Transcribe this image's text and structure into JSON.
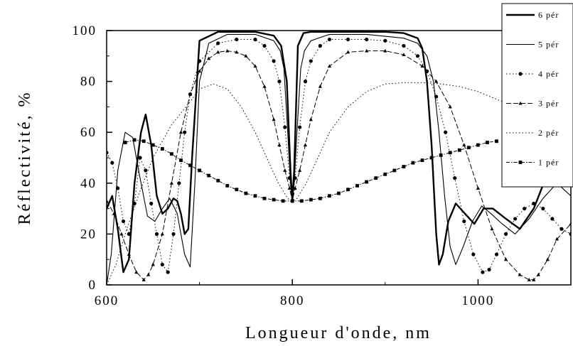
{
  "chart_data": {
    "type": "line",
    "title": "",
    "xlabel": "Longueur d'onde, nm",
    "ylabel": "Réflectivité, %",
    "xlim": [
      600,
      1100
    ],
    "ylim": [
      0,
      100
    ],
    "xticks": [
      600,
      800,
      1000
    ],
    "yticks": [
      0,
      20,
      40,
      60,
      80,
      100
    ],
    "grid": false,
    "legend_position": "top-right",
    "series": [
      {
        "name": "6 pér",
        "style": "thick-solid",
        "x": [
          600,
          606,
          612,
          618,
          624,
          630,
          637,
          642,
          648,
          654,
          660,
          666,
          672,
          676,
          680,
          684,
          688,
          692,
          700,
          720,
          740,
          760,
          780,
          788,
          794,
          798,
          800,
          802,
          806,
          812,
          820,
          840,
          860,
          880,
          900,
          920,
          935,
          940,
          945,
          950,
          955,
          958,
          962,
          968,
          976,
          986,
          996,
          1006,
          1016,
          1030,
          1045,
          1060,
          1075,
          1090,
          1100
        ],
        "y": [
          30,
          35,
          22,
          5,
          10,
          40,
          60,
          67,
          55,
          35,
          28,
          30,
          34,
          33,
          28,
          20,
          22,
          50,
          96,
          99.5,
          99.5,
          99.5,
          98,
          94,
          80,
          45,
          33,
          45,
          94,
          99,
          99.5,
          99.5,
          99.5,
          99.5,
          99.5,
          99,
          97,
          93,
          80,
          55,
          20,
          8,
          12,
          25,
          32,
          28,
          24,
          30,
          30,
          26,
          22,
          30,
          44,
          52,
          50
        ]
      },
      {
        "name": "5 pér",
        "style": "thin-solid",
        "x": [
          600,
          605,
          612,
          620,
          628,
          636,
          644,
          652,
          660,
          668,
          676,
          684,
          690,
          695,
          700,
          710,
          730,
          760,
          780,
          787,
          791,
          795,
          798,
          800,
          802,
          805,
          809,
          813,
          820,
          840,
          880,
          920,
          935,
          945,
          952,
          958,
          964,
          970,
          976,
          984,
          994,
          1004,
          1014,
          1026,
          1040,
          1055,
          1070,
          1085,
          1100
        ],
        "y": [
          0,
          12,
          45,
          60,
          58,
          42,
          27,
          25,
          30,
          34,
          28,
          12,
          7,
          40,
          80,
          95,
          98.5,
          98.5,
          96,
          92,
          85,
          60,
          40,
          33,
          40,
          60,
          85,
          92,
          96,
          98.5,
          98.5,
          97,
          95,
          90,
          80,
          60,
          35,
          15,
          8,
          15,
          25,
          31,
          28,
          24,
          20,
          26,
          34,
          40,
          35
        ]
      },
      {
        "name": "4 pér",
        "style": "dotted-circles",
        "x": [
          600,
          606,
          612,
          618,
          624,
          630,
          636,
          642,
          648,
          654,
          660,
          666,
          672,
          678,
          684,
          690,
          700,
          720,
          740,
          760,
          770,
          780,
          786,
          792,
          797,
          800,
          803,
          808,
          814,
          820,
          830,
          840,
          860,
          880,
          900,
          920,
          935,
          945,
          955,
          965,
          975,
          985,
          995,
          1005,
          1012,
          1020,
          1030,
          1040,
          1050,
          1060,
          1070,
          1080,
          1090,
          1100
        ],
        "y": [
          52,
          48,
          38,
          25,
          20,
          32,
          50,
          45,
          32,
          20,
          8,
          5,
          20,
          40,
          60,
          75,
          88,
          95,
          96.5,
          96.5,
          94,
          88,
          80,
          62,
          42,
          33,
          42,
          62,
          80,
          88,
          94,
          96.5,
          96.5,
          96.5,
          96,
          94,
          90,
          84,
          74,
          60,
          42,
          25,
          12,
          5,
          6,
          12,
          20,
          26,
          30,
          32,
          30,
          26,
          22,
          20
        ]
      },
      {
        "name": "3 pér",
        "style": "dash-triangles",
        "x": [
          600,
          608,
          616,
          624,
          632,
          640,
          645,
          650,
          660,
          670,
          680,
          690,
          700,
          710,
          720,
          730,
          740,
          750,
          760,
          770,
          780,
          786,
          792,
          797,
          800,
          803,
          808,
          814,
          820,
          830,
          840,
          860,
          880,
          900,
          920,
          940,
          955,
          970,
          985,
          1000,
          1015,
          1030,
          1045,
          1055,
          1060,
          1065,
          1075,
          1085,
          1100
        ],
        "y": [
          33,
          28,
          20,
          12,
          5,
          2,
          4,
          8,
          20,
          40,
          60,
          75,
          84,
          89,
          91.5,
          92,
          91.5,
          90,
          86,
          78,
          65,
          55,
          45,
          38,
          33,
          38,
          45,
          55,
          65,
          78,
          86,
          91.5,
          92,
          92,
          90.5,
          86,
          80,
          70,
          55,
          38,
          22,
          10,
          4,
          2,
          2,
          4,
          10,
          18,
          24
        ]
      },
      {
        "name": "2 pér",
        "style": "dotted",
        "x": [
          600,
          610,
          620,
          635,
          650,
          670,
          690,
          700,
          715,
          730,
          745,
          760,
          775,
          785,
          795,
          800,
          805,
          815,
          825,
          840,
          860,
          880,
          900,
          920,
          940,
          960,
          980,
          1000,
          1020,
          1040,
          1060,
          1080,
          1100
        ],
        "y": [
          0,
          8,
          20,
          36,
          50,
          63,
          72,
          77,
          79,
          77,
          70,
          60,
          48,
          40,
          34,
          33,
          34,
          40,
          48,
          60,
          70,
          76,
          79,
          79.5,
          79.5,
          79,
          78,
          76,
          73,
          70,
          66,
          60,
          54
        ]
      },
      {
        "name": "1 pér",
        "style": "dash-dot-squares",
        "x": [
          620,
          630,
          640,
          650,
          660,
          670,
          680,
          690,
          700,
          710,
          720,
          730,
          740,
          750,
          760,
          770,
          780,
          790,
          800,
          810,
          820,
          830,
          840,
          850,
          860,
          870,
          880,
          890,
          900,
          910,
          920,
          930,
          940,
          950,
          960,
          970,
          980,
          990,
          1000,
          1010,
          1020
        ],
        "y": [
          56,
          57,
          56.5,
          55,
          53.5,
          51.5,
          49,
          47,
          45,
          43,
          41,
          39,
          37.5,
          36,
          35,
          34,
          33.5,
          33,
          33,
          33,
          33.5,
          34,
          35,
          36,
          37.5,
          39,
          40.5,
          42,
          43.5,
          45,
          46.5,
          48,
          49,
          50,
          51,
          52,
          53,
          54,
          55,
          56,
          56.5
        ]
      }
    ]
  }
}
